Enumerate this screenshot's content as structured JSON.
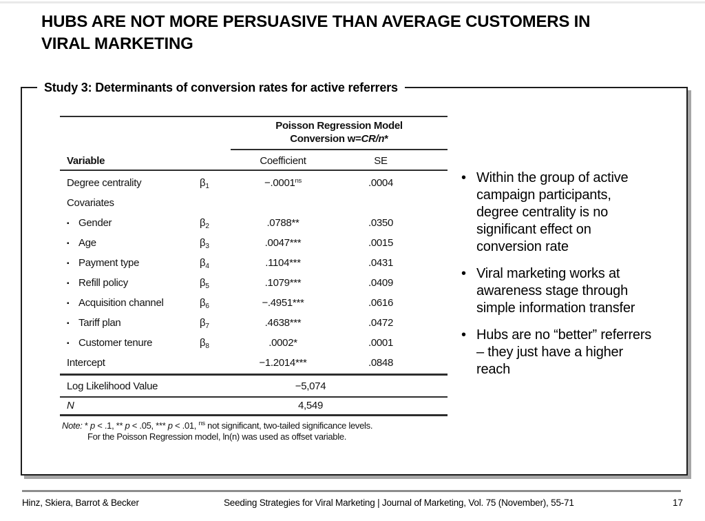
{
  "slide": {
    "title": "HUBS ARE NOT MORE PERSUASIVE THAN AVERAGE CUSTOMERS IN VIRAL MARKETING",
    "study_label": "Study 3: Determinants of conversion rates for active referrers"
  },
  "table": {
    "header": {
      "model_line": "Poisson Regression Model",
      "conversion_prefix": "Conversion w=",
      "conversion_formula": "CR/n",
      "conversion_suffix": "*",
      "col_variable": "Variable",
      "col_coefficient": "Coefficient",
      "col_se": "SE"
    },
    "rows": [
      {
        "marker": "",
        "label": "Degree centrality",
        "beta": "β",
        "beta_sub": "1",
        "coef": "−.0001",
        "coef_sup": "ns",
        "se": ".0004"
      },
      {
        "marker": "",
        "label": "Covariates",
        "beta": "",
        "beta_sub": "",
        "coef": "",
        "coef_sup": "",
        "se": ""
      },
      {
        "marker": "▪",
        "label": "Gender",
        "beta": "β",
        "beta_sub": "2",
        "coef": ".0788**",
        "coef_sup": "",
        "se": ".0350"
      },
      {
        "marker": "▪",
        "label": "Age",
        "beta": "β",
        "beta_sub": "3",
        "coef": ".0047***",
        "coef_sup": "",
        "se": ".0015"
      },
      {
        "marker": "▪",
        "label": "Payment type",
        "beta": "β",
        "beta_sub": "4",
        "coef": ".1104***",
        "coef_sup": "",
        "se": ".0431"
      },
      {
        "marker": "▪",
        "label": "Refill policy",
        "beta": "β",
        "beta_sub": "5",
        "coef": ".1079***",
        "coef_sup": "",
        "se": ".0409"
      },
      {
        "marker": "▪",
        "label": "Acquisition channel",
        "beta": "β",
        "beta_sub": "6",
        "coef": "−.4951***",
        "coef_sup": "",
        "se": ".0616"
      },
      {
        "marker": "▪",
        "label": "Tariff plan",
        "beta": "β",
        "beta_sub": "7",
        "coef": ".4638***",
        "coef_sup": "",
        "se": ".0472"
      },
      {
        "marker": "▪",
        "label": "Customer tenure",
        "beta": "β",
        "beta_sub": "8",
        "coef": ".0002*",
        "coef_sup": "",
        "se": ".0001"
      },
      {
        "marker": "",
        "label": "Intercept",
        "beta": "",
        "beta_sub": "",
        "coef": "−1.2014***",
        "coef_sup": "",
        "se": ".0848"
      }
    ],
    "summary": [
      {
        "label": "Log Likelihood Value",
        "value": "−5,074"
      },
      {
        "label": "N",
        "value": "4,549"
      }
    ],
    "note": {
      "label": "Note:",
      "s1": " * ",
      "p1": "p",
      "s2": " < .1, ** ",
      "p2": "p",
      "s3": " < .05, *** ",
      "p3": "p",
      "s4": " < .01, ",
      "sup": "ns",
      "s5": " not significant, two-tailed significance levels.",
      "line2": "For the Poisson Regression model, ln(n) was used as offset variable."
    }
  },
  "bullets": {
    "marker": "•",
    "items": [
      "Within the group of active campaign participants, degree centrality is no significant effect on conversion rate",
      "Viral marketing works at awareness stage through simple information transfer",
      "Hubs are no “better” referrers – they just have a higher reach"
    ]
  },
  "footer": {
    "authors": "Hinz, Skiera, Barrot & Becker",
    "source": "Seeding Strategies for Viral Marketing | Journal of Marketing, Vol. 75 (November), 55-71",
    "page": "17"
  },
  "colors": {
    "table_rule": "#2d2d2d",
    "box_shadow": "#a6a6a6",
    "footer_rule": "#8c8c8c"
  }
}
